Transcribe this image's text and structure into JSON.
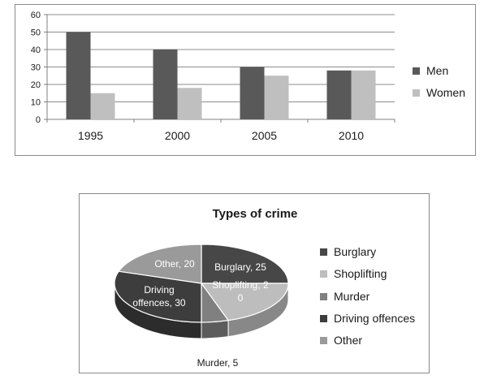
{
  "chart_data": [
    {
      "type": "bar",
      "categories": [
        "1995",
        "2000",
        "2005",
        "2010"
      ],
      "series": [
        {
          "name": "Men",
          "values": [
            50,
            40,
            30,
            28
          ],
          "color": "#595959"
        },
        {
          "name": "Women",
          "values": [
            15,
            18,
            25,
            28
          ],
          "color": "#bfbfbf"
        }
      ],
      "ylim": [
        0,
        60
      ],
      "yticks": [
        "0",
        "10",
        "20",
        "30",
        "40",
        "50",
        "60"
      ],
      "grid": true,
      "legend_position": "right"
    },
    {
      "type": "pie",
      "title": "Types of crime",
      "slices": [
        {
          "name": "Burglary",
          "value": 25,
          "label": "Burglary, 25",
          "color": "#474747"
        },
        {
          "name": "Shoplifting",
          "value": 20,
          "label_line1": "Shoplifting, 2",
          "label_line2": "0",
          "color": "#bdbdbd"
        },
        {
          "name": "Murder",
          "value": 5,
          "label": "Murder, 5",
          "color": "#808080"
        },
        {
          "name": "Driving offences",
          "value": 30,
          "label_line1": "Driving",
          "label_line2": "offences, 30",
          "color": "#3d3d3d"
        },
        {
          "name": "Other",
          "value": 20,
          "label": "Other, 20",
          "color": "#9a9a9a"
        }
      ],
      "legend_position": "right",
      "style": "3d"
    }
  ]
}
